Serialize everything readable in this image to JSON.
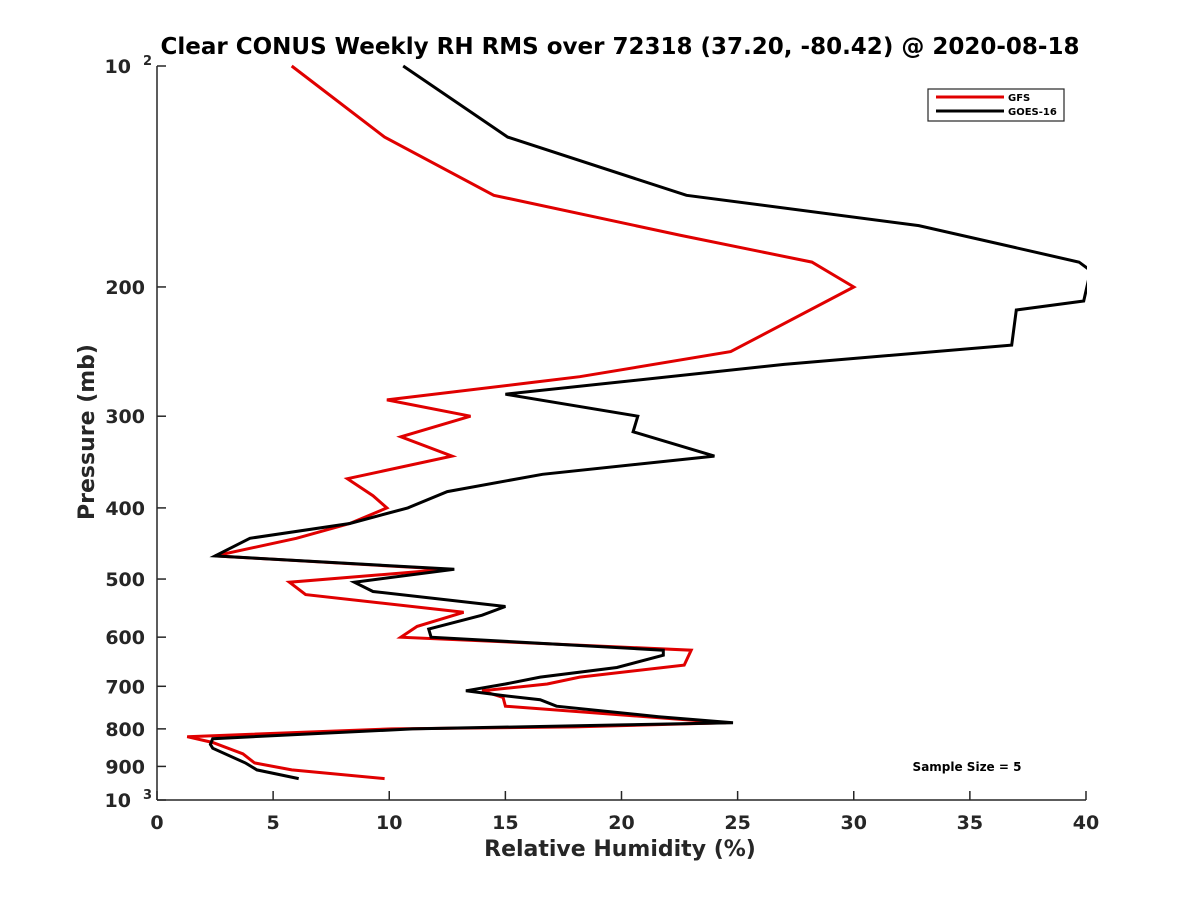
{
  "chart_data": {
    "type": "line",
    "title": "Clear CONUS Weekly RH RMS over 72318 (37.20, -80.42) @ 2020-08-18",
    "xlabel": "Relative Humidity (%)",
    "ylabel": "Pressure (mb)",
    "xlim": [
      0,
      40
    ],
    "ylim": [
      100,
      1000
    ],
    "y_scale": "log",
    "y_reversed": true,
    "grid": false,
    "legend_position": "top-right",
    "x_ticks": [
      "0",
      "5",
      "10",
      "15",
      "20",
      "25",
      "30",
      "35",
      "40"
    ],
    "y_tick_values": [
      100,
      200,
      300,
      400,
      500,
      600,
      700,
      800,
      900,
      1000
    ],
    "y_ticks": [
      "10",
      "200",
      "300",
      "400",
      "500",
      "600",
      "700",
      "800",
      "900",
      "10"
    ],
    "y_tick_superscripts": {
      "100": "2",
      "1000": "3"
    },
    "annotation": "Sample Size = 5",
    "series": [
      {
        "name": "GFS",
        "color": "#e00000",
        "points": [
          [
            5.8,
            100
          ],
          [
            9.8,
            125
          ],
          [
            14.5,
            150
          ],
          [
            22.5,
            170
          ],
          [
            28.2,
            185
          ],
          [
            30.0,
            200
          ],
          [
            24.7,
            245
          ],
          [
            18.2,
            265
          ],
          [
            9.9,
            285
          ],
          [
            13.5,
            300
          ],
          [
            10.5,
            320
          ],
          [
            12.7,
            340
          ],
          [
            8.2,
            365
          ],
          [
            9.3,
            385
          ],
          [
            9.9,
            400
          ],
          [
            8.3,
            420
          ],
          [
            6.0,
            440
          ],
          [
            2.5,
            465
          ],
          [
            12.5,
            485
          ],
          [
            5.7,
            505
          ],
          [
            6.4,
            525
          ],
          [
            13.2,
            555
          ],
          [
            11.2,
            580
          ],
          [
            10.5,
            600
          ],
          [
            23.0,
            625
          ],
          [
            22.7,
            655
          ],
          [
            18.2,
            680
          ],
          [
            16.8,
            695
          ],
          [
            14.0,
            710
          ],
          [
            14.9,
            725
          ],
          [
            15.0,
            745
          ],
          [
            22.2,
            775
          ],
          [
            24.5,
            785
          ],
          [
            18.0,
            795
          ],
          [
            10.1,
            800
          ],
          [
            1.3,
            820
          ],
          [
            2.4,
            835
          ],
          [
            3.7,
            865
          ],
          [
            4.2,
            890
          ],
          [
            5.8,
            910
          ],
          [
            9.8,
            935
          ]
        ]
      },
      {
        "name": "GOES-16",
        "color": "#000000",
        "points": [
          [
            10.6,
            100
          ],
          [
            15.1,
            125
          ],
          [
            22.8,
            150
          ],
          [
            32.8,
            165
          ],
          [
            39.7,
            185
          ],
          [
            40.2,
            190
          ],
          [
            39.9,
            209
          ],
          [
            37.0,
            215
          ],
          [
            36.8,
            240
          ],
          [
            27.0,
            255
          ],
          [
            15.0,
            280
          ],
          [
            20.7,
            300
          ],
          [
            20.5,
            315
          ],
          [
            24.0,
            340
          ],
          [
            16.6,
            360
          ],
          [
            12.5,
            380
          ],
          [
            10.8,
            400
          ],
          [
            8.3,
            420
          ],
          [
            4.0,
            440
          ],
          [
            2.5,
            465
          ],
          [
            12.8,
            485
          ],
          [
            8.5,
            505
          ],
          [
            9.3,
            520
          ],
          [
            15.0,
            545
          ],
          [
            14.0,
            560
          ],
          [
            11.7,
            585
          ],
          [
            11.8,
            600
          ],
          [
            21.8,
            625
          ],
          [
            21.8,
            635
          ],
          [
            19.8,
            660
          ],
          [
            16.5,
            680
          ],
          [
            15.0,
            695
          ],
          [
            13.3,
            710
          ],
          [
            14.8,
            720
          ],
          [
            16.5,
            730
          ],
          [
            17.2,
            745
          ],
          [
            21.6,
            770
          ],
          [
            24.8,
            785
          ],
          [
            20.0,
            790
          ],
          [
            11.0,
            800
          ],
          [
            2.4,
            825
          ],
          [
            2.3,
            840
          ],
          [
            2.4,
            850
          ],
          [
            3.8,
            890
          ],
          [
            4.3,
            910
          ],
          [
            6.1,
            935
          ]
        ]
      }
    ]
  }
}
